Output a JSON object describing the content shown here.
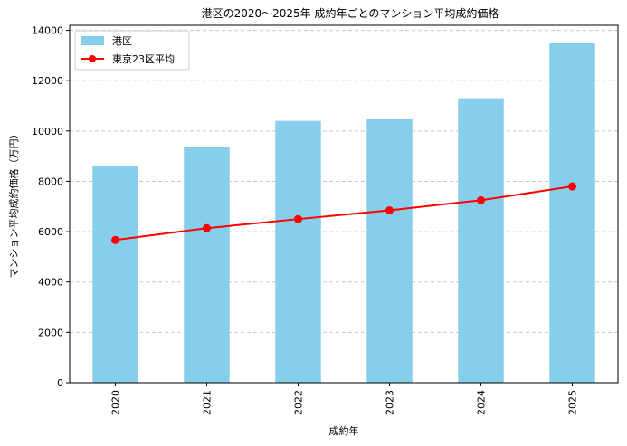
{
  "chart_data": {
    "type": "bar",
    "title": "港区の2020〜2025年 成約年ごとのマンション平均成約価格",
    "xlabel": "成約年",
    "ylabel": "マンション平均成約価格（万円）",
    "categories": [
      "2020",
      "2021",
      "2022",
      "2023",
      "2024",
      "2025"
    ],
    "series": [
      {
        "name": "港区",
        "type": "bar",
        "color": "#87ceeb",
        "values": [
          8600,
          9380,
          10400,
          10500,
          11300,
          13500
        ]
      },
      {
        "name": "東京23区平均",
        "type": "line",
        "color": "#ff0000",
        "values": [
          5670,
          6140,
          6500,
          6850,
          7250,
          7800
        ]
      }
    ],
    "ylim": [
      0,
      14200
    ],
    "yticks": [
      0,
      2000,
      4000,
      6000,
      8000,
      10000,
      12000,
      14000
    ],
    "grid": "y-dashed",
    "legend": "top-left"
  }
}
